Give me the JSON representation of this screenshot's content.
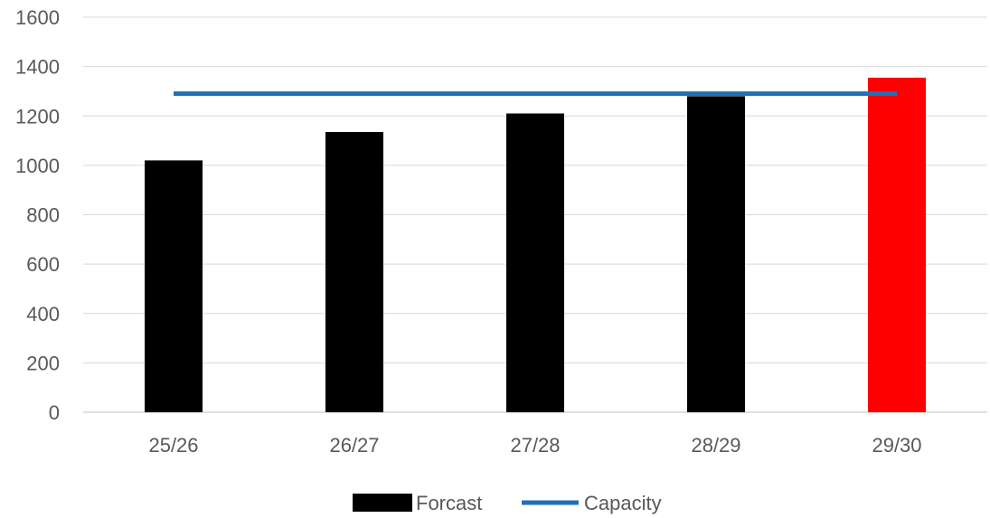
{
  "chart_data": {
    "type": "bar",
    "categories": [
      "25/26",
      "26/27",
      "27/28",
      "28/29",
      "29/30"
    ],
    "series": [
      {
        "name": "Forcast",
        "kind": "bar",
        "values": [
          1020,
          1135,
          1210,
          1280,
          1355
        ],
        "colors": [
          "#000000",
          "#000000",
          "#000000",
          "#000000",
          "#ff0000"
        ]
      },
      {
        "name": "Capacity",
        "kind": "line",
        "values": [
          1290,
          1290,
          1290,
          1290,
          1290
        ],
        "color": "#1f6fba"
      }
    ],
    "title": "",
    "xlabel": "",
    "ylabel": "",
    "ylim": [
      0,
      1600
    ],
    "yticks": [
      0,
      200,
      400,
      600,
      800,
      1000,
      1200,
      1400,
      1600
    ],
    "grid": true,
    "legend": "bottom"
  }
}
